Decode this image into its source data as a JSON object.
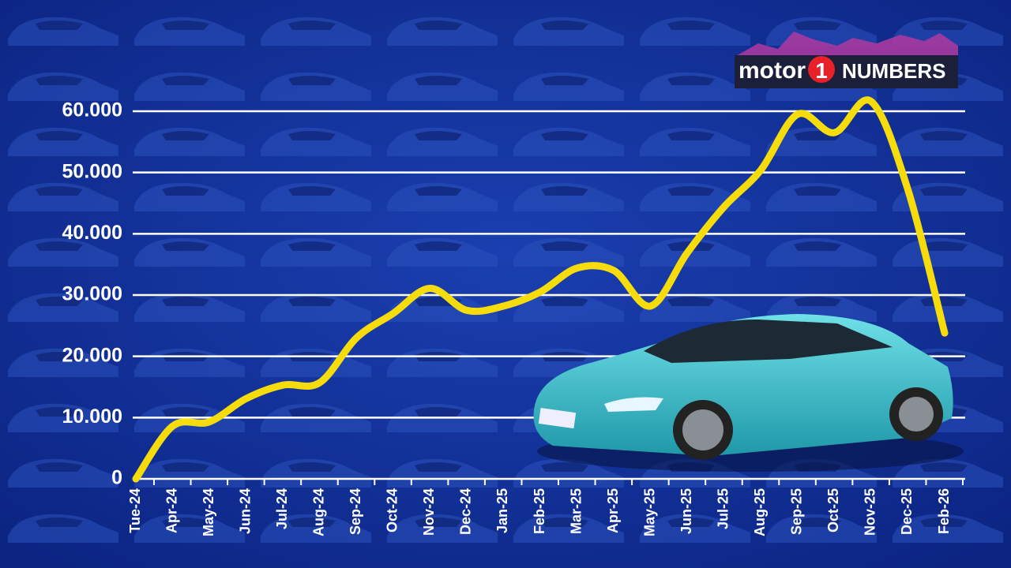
{
  "chart_data": {
    "type": "line",
    "logo": {
      "word": "motor",
      "mark": "1",
      "suffix": "NUMBERS"
    },
    "categories": [
      "Tue-24",
      "Apr-24",
      "May-24",
      "Jun-24",
      "Jul-24",
      "Aug-24",
      "Sep-24",
      "Oct-24",
      "Nov-24",
      "Dec-24",
      "Jan-25",
      "Feb-25",
      "Mar-25",
      "Apr-25",
      "May-25",
      "Jun-25",
      "Jul-25",
      "Aug-25",
      "Sep-25",
      "Oct-25",
      "Nov-25",
      "Dec-25",
      "Feb-26"
    ],
    "values": [
      0,
      8600,
      9300,
      13100,
      15300,
      15700,
      23000,
      27000,
      31100,
      27500,
      28200,
      30500,
      34400,
      34000,
      28200,
      36900,
      44400,
      50400,
      59500,
      56500,
      61600,
      47200,
      23800
    ],
    "color": "#f5dc0a",
    "ylim": [
      0,
      60000
    ],
    "yticks": [
      0,
      {
        "value": 10000,
        "label": "10.000"
      },
      {
        "value": 20000,
        "label": "20.000"
      },
      {
        "value": 30000,
        "label": "30.000"
      },
      {
        "value": 40000,
        "label": "40.000"
      },
      {
        "value": 50000,
        "label": "50.000"
      },
      {
        "value": 60000,
        "label": "60.000"
      }
    ],
    "grid": true
  }
}
